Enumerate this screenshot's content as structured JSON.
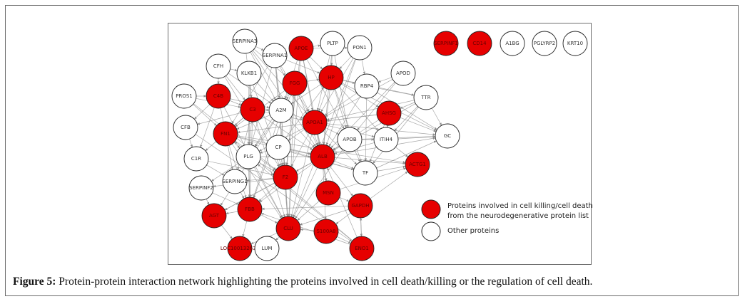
{
  "caption": {
    "label": "Figure 5:",
    "text": " Protein-protein interaction network highlighting the proteins involved in cell death/killing or the regulation of cell death."
  },
  "colors": {
    "highlight": "#e60000",
    "other": "#ffffff",
    "edge": "#8c8c8c"
  },
  "legend": {
    "highlight_line1": "Proteins involved in cell killing/cell death",
    "highlight_line2": "from the neurodegenerative protein list",
    "other": "Other proteins"
  },
  "nodes": [
    {
      "id": "SERPINA3",
      "label": "SERPINA3",
      "group": "other"
    },
    {
      "id": "APOE",
      "label": "APOE",
      "group": "highlight"
    },
    {
      "id": "PLTP",
      "label": "PLTP",
      "group": "other"
    },
    {
      "id": "PON1",
      "label": "PON1",
      "group": "other"
    },
    {
      "id": "SERPINF1",
      "label": "SERPINF1",
      "group": "highlight"
    },
    {
      "id": "CD14",
      "label": "CD14",
      "group": "highlight"
    },
    {
      "id": "A1BG",
      "label": "A1BG",
      "group": "other"
    },
    {
      "id": "PGLYRP2",
      "label": "PGLYRP2",
      "group": "other"
    },
    {
      "id": "KRT10",
      "label": "KRT10",
      "group": "other"
    },
    {
      "id": "CFH",
      "label": "CFH",
      "group": "other"
    },
    {
      "id": "SERPINA1",
      "label": "SERPINA1",
      "group": "other"
    },
    {
      "id": "KLKB1",
      "label": "KLKB1",
      "group": "other"
    },
    {
      "id": "FGG",
      "label": "FGG",
      "group": "highlight"
    },
    {
      "id": "HP",
      "label": "HP",
      "group": "highlight"
    },
    {
      "id": "APOD",
      "label": "APOD",
      "group": "other"
    },
    {
      "id": "RBP4",
      "label": "RBP4",
      "group": "other"
    },
    {
      "id": "PROS1",
      "label": "PROS1",
      "group": "other"
    },
    {
      "id": "C4B",
      "label": "C4B",
      "group": "highlight"
    },
    {
      "id": "C3",
      "label": "C3",
      "group": "highlight"
    },
    {
      "id": "A2M",
      "label": "A2M",
      "group": "other"
    },
    {
      "id": "TTR",
      "label": "TTR",
      "group": "other"
    },
    {
      "id": "AHSG",
      "label": "AHSG",
      "group": "highlight"
    },
    {
      "id": "APOA1",
      "label": "APOA1",
      "group": "highlight"
    },
    {
      "id": "CFB",
      "label": "CFB",
      "group": "other"
    },
    {
      "id": "FN1",
      "label": "FN1",
      "group": "highlight"
    },
    {
      "id": "APOB",
      "label": "APOB",
      "group": "other"
    },
    {
      "id": "ITIH4",
      "label": "ITIH4",
      "group": "other"
    },
    {
      "id": "GC",
      "label": "GC",
      "group": "other"
    },
    {
      "id": "CP",
      "label": "CP",
      "group": "other"
    },
    {
      "id": "PLG",
      "label": "PLG",
      "group": "other"
    },
    {
      "id": "C1R",
      "label": "C1R",
      "group": "other"
    },
    {
      "id": "ALB",
      "label": "ALB",
      "group": "highlight"
    },
    {
      "id": "TF",
      "label": "TF",
      "group": "other"
    },
    {
      "id": "ACTG1",
      "label": "ACTG1",
      "group": "highlight"
    },
    {
      "id": "F2",
      "label": "F2",
      "group": "highlight"
    },
    {
      "id": "SERPING1",
      "label": "SERPING1",
      "group": "other"
    },
    {
      "id": "SERPINF2",
      "label": "SERPINF2",
      "group": "other"
    },
    {
      "id": "MSN",
      "label": "MSN",
      "group": "highlight"
    },
    {
      "id": "GAPDH",
      "label": "GAPDH",
      "group": "highlight"
    },
    {
      "id": "FBB",
      "label": "FBB",
      "group": "highlight"
    },
    {
      "id": "AGT",
      "label": "AGT",
      "group": "highlight"
    },
    {
      "id": "CLU",
      "label": "CLU",
      "group": "highlight"
    },
    {
      "id": "S100A8",
      "label": "S100A8",
      "group": "highlight"
    },
    {
      "id": "LOC",
      "label": "LOC100132630",
      "group": "highlight"
    },
    {
      "id": "LUM",
      "label": "LUM",
      "group": "other"
    },
    {
      "id": "ENO1",
      "label": "ENO1",
      "group": "highlight"
    }
  ],
  "edges": [
    [
      "SERPINA3",
      "A2M"
    ],
    [
      "SERPINA3",
      "C3"
    ],
    [
      "SERPINA3",
      "APOA1"
    ],
    [
      "SERPINA3",
      "ALB"
    ],
    [
      "SERPINA3",
      "FGG"
    ],
    [
      "SERPINA3",
      "SERPINA1"
    ],
    [
      "APOE",
      "APOA1"
    ],
    [
      "APOE",
      "ALB"
    ],
    [
      "APOE",
      "PLTP"
    ],
    [
      "APOE",
      "A2M"
    ],
    [
      "APOE",
      "CLU"
    ],
    [
      "APOE",
      "APOB"
    ],
    [
      "APOE",
      "PON1"
    ],
    [
      "APOE",
      "HP"
    ],
    [
      "APOE",
      "F2"
    ],
    [
      "PLTP",
      "APOA1"
    ],
    [
      "PLTP",
      "APOB"
    ],
    [
      "PLTP",
      "ALB"
    ],
    [
      "PLTP",
      "HP"
    ],
    [
      "PON1",
      "APOA1"
    ],
    [
      "PON1",
      "ALB"
    ],
    [
      "PON1",
      "HP"
    ],
    [
      "PON1",
      "RBP4"
    ],
    [
      "PON1",
      "CLU"
    ],
    [
      "CFH",
      "C3"
    ],
    [
      "CFH",
      "C4B"
    ],
    [
      "CFH",
      "A2M"
    ],
    [
      "CFH",
      "F2"
    ],
    [
      "CFH",
      "KLKB1"
    ],
    [
      "SERPINA1",
      "ALB"
    ],
    [
      "SERPINA1",
      "A2M"
    ],
    [
      "SERPINA1",
      "APOA1"
    ],
    [
      "SERPINA1",
      "FN1"
    ],
    [
      "SERPINA1",
      "F2"
    ],
    [
      "SERPINA1",
      "HP"
    ],
    [
      "SERPINA1",
      "CLU"
    ],
    [
      "SERPINA1",
      "PLG"
    ],
    [
      "KLKB1",
      "F2"
    ],
    [
      "KLKB1",
      "PLG"
    ],
    [
      "KLKB1",
      "A2M"
    ],
    [
      "KLKB1",
      "C3"
    ],
    [
      "KLKB1",
      "FBB"
    ],
    [
      "FGG",
      "FBB"
    ],
    [
      "FGG",
      "F2"
    ],
    [
      "FGG",
      "ALB"
    ],
    [
      "FGG",
      "PLG"
    ],
    [
      "FGG",
      "APOA1"
    ],
    [
      "FGG",
      "FN1"
    ],
    [
      "FGG",
      "A2M"
    ],
    [
      "FGG",
      "HP"
    ],
    [
      "FGG",
      "CLU"
    ],
    [
      "HP",
      "ALB"
    ],
    [
      "HP",
      "APOA1"
    ],
    [
      "HP",
      "TTR"
    ],
    [
      "HP",
      "AHSG"
    ],
    [
      "HP",
      "GC"
    ],
    [
      "HP",
      "TF"
    ],
    [
      "HP",
      "APOB"
    ],
    [
      "HP",
      "A2M"
    ],
    [
      "HP",
      "ITIH4"
    ],
    [
      "HP",
      "RBP4"
    ],
    [
      "APOD",
      "APOA1"
    ],
    [
      "APOD",
      "ALB"
    ],
    [
      "APOD",
      "APOB"
    ],
    [
      "APOD",
      "RBP4"
    ],
    [
      "RBP4",
      "TTR"
    ],
    [
      "RBP4",
      "ALB"
    ],
    [
      "RBP4",
      "APOA1"
    ],
    [
      "RBP4",
      "GC"
    ],
    [
      "RBP4",
      "TF"
    ],
    [
      "PROS1",
      "C4B"
    ],
    [
      "PROS1",
      "F2"
    ],
    [
      "PROS1",
      "C3"
    ],
    [
      "PROS1",
      "FN1"
    ],
    [
      "C4B",
      "C3"
    ],
    [
      "C4B",
      "CFB"
    ],
    [
      "C4B",
      "SERPING1"
    ],
    [
      "C4B",
      "C1R"
    ],
    [
      "C4B",
      "CLU"
    ],
    [
      "C4B",
      "A2M"
    ],
    [
      "C3",
      "CFB"
    ],
    [
      "C3",
      "ALB"
    ],
    [
      "C3",
      "A2M"
    ],
    [
      "C3",
      "APOA1"
    ],
    [
      "C3",
      "FN1"
    ],
    [
      "C3",
      "CLU"
    ],
    [
      "C3",
      "PLG"
    ],
    [
      "C3",
      "F2"
    ],
    [
      "C3",
      "SERPING1"
    ],
    [
      "C3",
      "C1R"
    ],
    [
      "C3",
      "FBB"
    ],
    [
      "A2M",
      "ALB"
    ],
    [
      "A2M",
      "APOA1"
    ],
    [
      "A2M",
      "PLG"
    ],
    [
      "A2M",
      "F2"
    ],
    [
      "A2M",
      "FN1"
    ],
    [
      "A2M",
      "CLU"
    ],
    [
      "A2M",
      "AGT"
    ],
    [
      "A2M",
      "FBB"
    ],
    [
      "TTR",
      "APOA1"
    ],
    [
      "TTR",
      "ALB"
    ],
    [
      "TTR",
      "GC"
    ],
    [
      "TTR",
      "TF"
    ],
    [
      "TTR",
      "AHSG"
    ],
    [
      "TTR",
      "ITIH4"
    ],
    [
      "AHSG",
      "ALB"
    ],
    [
      "AHSG",
      "APOA1"
    ],
    [
      "AHSG",
      "GC"
    ],
    [
      "AHSG",
      "TF"
    ],
    [
      "AHSG",
      "FN1"
    ],
    [
      "AHSG",
      "ITIH4"
    ],
    [
      "APOA1",
      "ALB"
    ],
    [
      "APOA1",
      "APOB"
    ],
    [
      "APOA1",
      "CLU"
    ],
    [
      "APOA1",
      "TF"
    ],
    [
      "APOA1",
      "GC"
    ],
    [
      "APOA1",
      "ITIH4"
    ],
    [
      "APOA1",
      "F2"
    ],
    [
      "APOA1",
      "PLG"
    ],
    [
      "APOA1",
      "CP"
    ],
    [
      "APOA1",
      "MSN"
    ],
    [
      "CFB",
      "ENO1"
    ],
    [
      "CFB",
      "C1R"
    ],
    [
      "ENO1",
      "FN1"
    ],
    [
      "ENO1",
      "PLG"
    ],
    [
      "ENO1",
      "GAPDH"
    ],
    [
      "ENO1",
      "ALB"
    ],
    [
      "ENO1",
      "FBB"
    ],
    [
      "FN1",
      "PLG"
    ],
    [
      "FN1",
      "F2"
    ],
    [
      "FN1",
      "ALB"
    ],
    [
      "FN1",
      "FBB"
    ],
    [
      "FN1",
      "ACTG1"
    ],
    [
      "FN1",
      "CLU"
    ],
    [
      "FN1",
      "TF"
    ],
    [
      "APOB",
      "ALB"
    ],
    [
      "APOB",
      "CLU"
    ],
    [
      "APOB",
      "GC"
    ],
    [
      "APOB",
      "TF"
    ],
    [
      "APOB",
      "ITIH4"
    ],
    [
      "ITIH4",
      "ALB"
    ],
    [
      "ITIH4",
      "GC"
    ],
    [
      "ITIH4",
      "ACTG1"
    ],
    [
      "CP",
      "ALB"
    ],
    [
      "CP",
      "TF"
    ],
    [
      "CP",
      "F2"
    ],
    [
      "CP",
      "PLG"
    ],
    [
      "CP",
      "HP"
    ],
    [
      "PLG",
      "F2"
    ],
    [
      "PLG",
      "ALB"
    ],
    [
      "PLG",
      "FBB"
    ],
    [
      "PLG",
      "SERPINF2"
    ],
    [
      "PLG",
      "CLU"
    ],
    [
      "C1R",
      "SERPING1"
    ],
    [
      "C1R",
      "F2"
    ],
    [
      "ALB",
      "TF"
    ],
    [
      "ALB",
      "F2"
    ],
    [
      "ALB",
      "CLU"
    ],
    [
      "ALB",
      "MSN"
    ],
    [
      "ALB",
      "GAPDH"
    ],
    [
      "ALB",
      "ACTG1"
    ],
    [
      "ALB",
      "GC"
    ],
    [
      "ALB",
      "FBB"
    ],
    [
      "ALB",
      "AGT"
    ],
    [
      "ALB",
      "S100A8"
    ],
    [
      "TF",
      "ACTG1"
    ],
    [
      "TF",
      "GC"
    ],
    [
      "F2",
      "FBB"
    ],
    [
      "F2",
      "SERPING1"
    ],
    [
      "F2",
      "SERPINF2"
    ],
    [
      "F2",
      "CLU"
    ],
    [
      "F2",
      "AGT"
    ],
    [
      "SERPING1",
      "FBB"
    ],
    [
      "SERPINF2",
      "FBB"
    ],
    [
      "SERPINF2",
      "AGT"
    ],
    [
      "MSN",
      "ACTG1"
    ],
    [
      "MSN",
      "GAPDH"
    ],
    [
      "MSN",
      "CLU"
    ],
    [
      "GAPDH",
      "ACTG1"
    ],
    [
      "GAPDH",
      "FBB"
    ],
    [
      "GAPDH",
      "S100A8"
    ],
    [
      "GAPDH",
      "ENO1"
    ],
    [
      "GAPDH",
      "CLU"
    ],
    [
      "FBB",
      "CLU"
    ],
    [
      "FBB",
      "AGT"
    ],
    [
      "FBB",
      "LOC"
    ],
    [
      "AGT",
      "LOC"
    ],
    [
      "CLU",
      "LUM"
    ],
    [
      "S100A8",
      "ENO1"
    ],
    [
      "CLU",
      "LOC"
    ],
    [
      "S100A8",
      "CLU"
    ]
  ]
}
